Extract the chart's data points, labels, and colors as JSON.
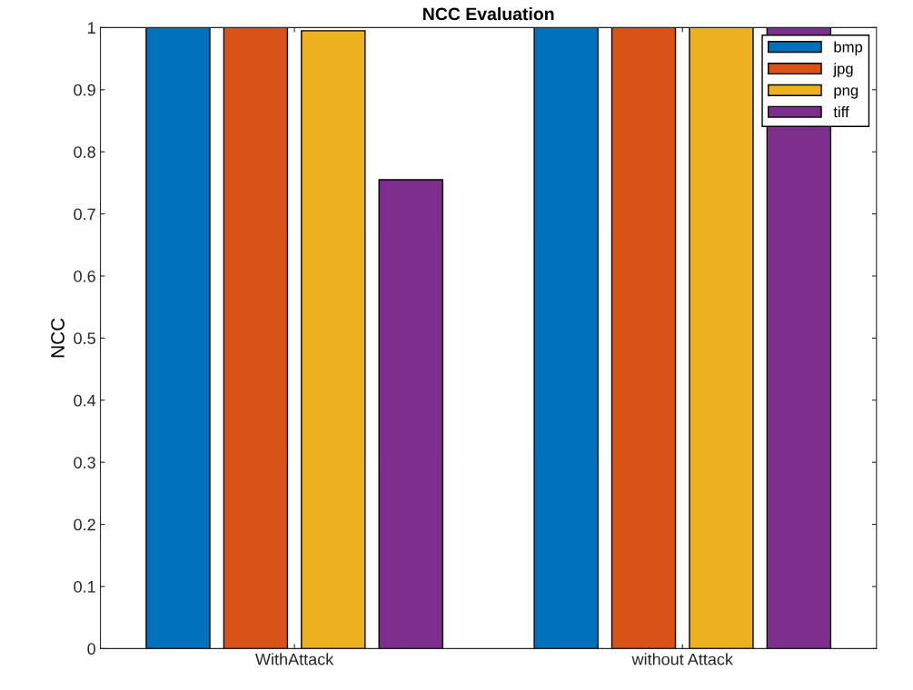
{
  "chart_data": {
    "type": "bar",
    "title": "NCC Evaluation",
    "ylabel": "NCC",
    "categories": [
      "WithAttack",
      "without Attack"
    ],
    "series": [
      {
        "name": "bmp",
        "color": "#0072bd",
        "values": [
          1,
          1
        ]
      },
      {
        "name": "jpg",
        "color": "#d95319",
        "values": [
          1,
          1
        ]
      },
      {
        "name": "png",
        "color": "#edb120",
        "values": [
          0.995,
          1
        ]
      },
      {
        "name": "tiff",
        "color": "#7e2f8e",
        "values": [
          0.755,
          1
        ]
      }
    ],
    "ylim": [
      0,
      1
    ],
    "yticks": [
      0,
      0.1,
      0.2,
      0.3,
      0.4,
      0.5,
      0.6,
      0.7,
      0.8,
      0.9,
      1
    ],
    "grid": false,
    "legend": "top right"
  }
}
